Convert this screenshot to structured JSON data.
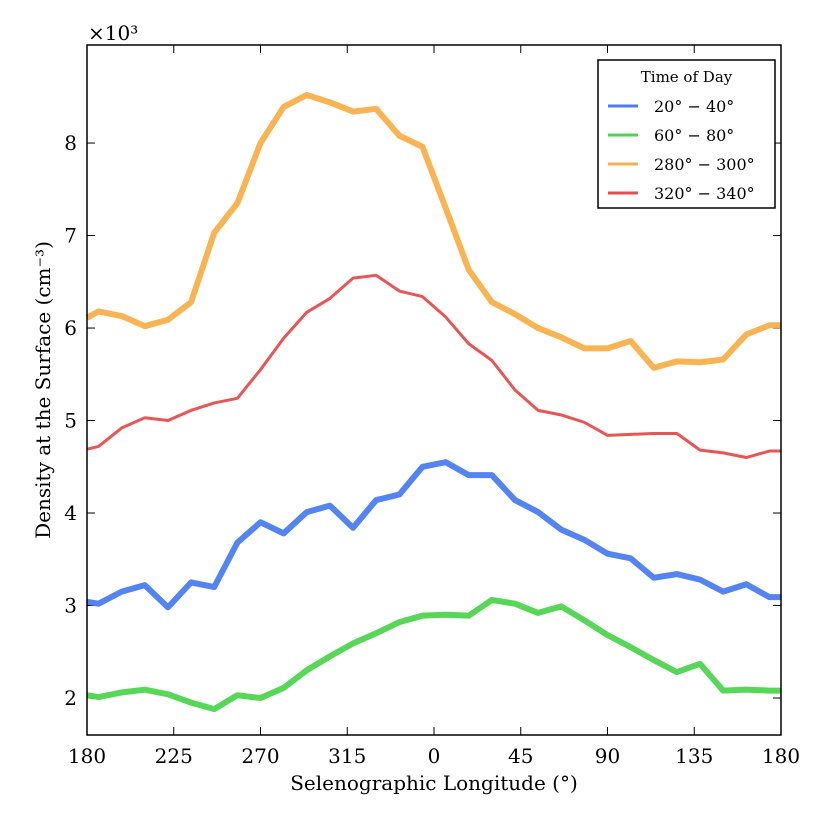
{
  "chart_data": {
    "type": "line",
    "xlabel": "Selenographic Longitude (°)",
    "ylabel": "Density at the Surface (cm⁻³)",
    "y_offset_label": "×10³",
    "legend_title": "Time of Day",
    "legend": "upper right",
    "x": [
      180,
      186,
      198,
      210,
      222,
      234,
      246,
      258,
      270,
      282,
      294,
      306,
      318,
      330,
      342,
      354,
      366,
      378,
      390,
      402,
      414,
      426,
      438,
      450,
      462,
      474,
      486,
      498,
      510,
      522,
      534,
      540
    ],
    "xlim": [
      180,
      540
    ],
    "xticks": [
      180,
      225,
      270,
      315,
      {
        "value": 360,
        "label": "0"
      },
      {
        "value": 405,
        "label": "45"
      },
      {
        "value": 450,
        "label": "90"
      },
      {
        "value": 495,
        "label": "135"
      },
      {
        "value": 540,
        "label": "180"
      }
    ],
    "ylim": [
      1.6,
      9.06
    ],
    "yticks": [
      2,
      3,
      4,
      5,
      6,
      7,
      8
    ],
    "series": [
      {
        "name": "20° − 40°",
        "color": "#4a7df0",
        "values": [
          3.04,
          3.02,
          3.15,
          3.22,
          2.98,
          3.25,
          3.2,
          3.68,
          3.9,
          3.78,
          4.01,
          4.08,
          3.84,
          4.14,
          4.2,
          4.5,
          4.55,
          4.41,
          4.41,
          4.14,
          4.01,
          3.82,
          3.71,
          3.56,
          3.51,
          3.3,
          3.34,
          3.28,
          3.15,
          3.23,
          3.09,
          3.09
        ]
      },
      {
        "name": "60° − 80°",
        "color": "#4fd44f",
        "values": [
          2.03,
          2.01,
          2.06,
          2.09,
          2.04,
          1.95,
          1.88,
          2.03,
          2.0,
          2.11,
          2.3,
          2.45,
          2.59,
          2.7,
          2.82,
          2.89,
          2.9,
          2.89,
          3.06,
          3.02,
          2.92,
          2.99,
          2.84,
          2.68,
          2.55,
          2.41,
          2.28,
          2.37,
          2.08,
          2.09,
          2.08,
          2.08
        ]
      },
      {
        "name": "280° − 300°",
        "color": "#f8b04a",
        "values": [
          6.11,
          6.18,
          6.13,
          6.02,
          6.09,
          6.28,
          7.03,
          7.35,
          8.0,
          8.39,
          8.52,
          8.44,
          8.34,
          8.37,
          8.08,
          7.96,
          7.3,
          6.63,
          6.28,
          6.15,
          6.0,
          5.9,
          5.78,
          5.78,
          5.86,
          5.57,
          5.64,
          5.63,
          5.66,
          5.93,
          6.03,
          6.03
        ]
      },
      {
        "name": "320° − 340°",
        "color": "#e84c4c",
        "values": [
          4.69,
          4.72,
          4.92,
          5.03,
          5.0,
          5.11,
          5.19,
          5.24,
          5.55,
          5.89,
          6.17,
          6.32,
          6.54,
          6.57,
          6.4,
          6.34,
          6.12,
          5.83,
          5.65,
          5.33,
          5.11,
          5.06,
          4.98,
          4.84,
          4.85,
          4.86,
          4.86,
          4.68,
          4.65,
          4.6,
          4.67,
          4.67
        ]
      }
    ]
  }
}
